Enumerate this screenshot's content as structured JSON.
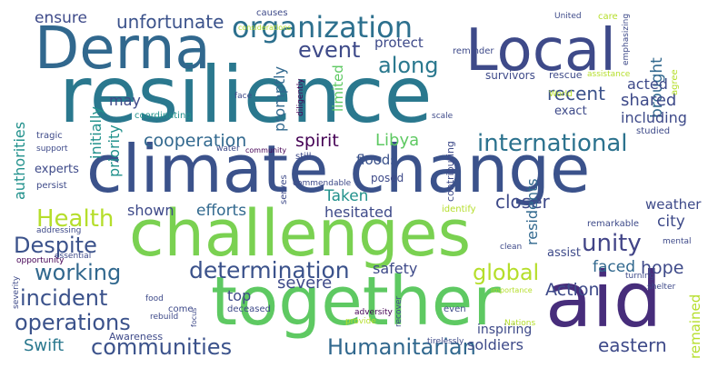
{
  "palette": {
    "dark_purple": "#440154",
    "indigo": "#3b528b",
    "slate_blue": "#31688e",
    "teal": "#21918c",
    "sea_green": "#35b779",
    "lime_green": "#7ad151",
    "yellow_green": "#b5de2b",
    "yellow": "#fde725"
  },
  "words": [
    {
      "text": "resilience",
      "color": "#2a788e"
    },
    {
      "text": "climate change",
      "color": "#3b528b"
    },
    {
      "text": "challenges",
      "color": "#7ad151"
    },
    {
      "text": "together",
      "color": "#5ec962"
    },
    {
      "text": "aid",
      "color": "#472d7b"
    },
    {
      "text": "Local",
      "color": "#3e4a89"
    },
    {
      "text": "Derna",
      "color": "#31688e"
    },
    {
      "text": "organization",
      "color": "#2d708e"
    },
    {
      "text": "international",
      "color": "#2c728e"
    },
    {
      "text": "determination",
      "color": "#3b528b"
    },
    {
      "text": "cooperation",
      "color": "#31688e"
    },
    {
      "text": "spirit",
      "color": "#440154"
    },
    {
      "text": "unity",
      "color": "#414487"
    },
    {
      "text": "Humanitarian",
      "color": "#31688e"
    },
    {
      "text": "communities",
      "color": "#3b528b"
    },
    {
      "text": "operations",
      "color": "#3b528b"
    },
    {
      "text": "incident",
      "color": "#3b528b"
    },
    {
      "text": "working",
      "color": "#31688e"
    },
    {
      "text": "Health",
      "color": "#b5de2b"
    },
    {
      "text": "Despite",
      "color": "#3b528b"
    },
    {
      "text": "global",
      "color": "#b5de2b"
    },
    {
      "text": "event",
      "color": "#3e4a89"
    },
    {
      "text": "along",
      "color": "#2a788e"
    },
    {
      "text": "unfortunate",
      "color": "#3b528b"
    },
    {
      "text": "ensure",
      "color": "#3e4a89"
    },
    {
      "text": "authorities",
      "color": "#21918c"
    },
    {
      "text": "recent",
      "color": "#3b528b"
    },
    {
      "text": "brought",
      "color": "#31688e"
    },
    {
      "text": "acted",
      "color": "#3e4a89"
    },
    {
      "text": "shared",
      "color": "#3e4a89"
    },
    {
      "text": "including",
      "color": "#3e4a89"
    },
    {
      "text": "protect",
      "color": "#3e4a89"
    },
    {
      "text": "Libya",
      "color": "#5ec962"
    },
    {
      "text": "floods",
      "color": "#3b528b"
    },
    {
      "text": "Taken",
      "color": "#21918c"
    },
    {
      "text": "closer",
      "color": "#3e4a89"
    },
    {
      "text": "hesitated",
      "color": "#3e4a89"
    },
    {
      "text": "efforts",
      "color": "#31688e"
    },
    {
      "text": "shown",
      "color": "#3e4a89"
    },
    {
      "text": "safety",
      "color": "#3e4a89"
    },
    {
      "text": "severe",
      "color": "#3e4a89"
    },
    {
      "text": "Action",
      "color": "#3e4a89"
    },
    {
      "text": "faced",
      "color": "#31688e"
    },
    {
      "text": "hope",
      "color": "#3e4a89"
    },
    {
      "text": "city",
      "color": "#3e4a89"
    },
    {
      "text": "weather",
      "color": "#3e4a89"
    },
    {
      "text": "eastern",
      "color": "#3e4a89"
    },
    {
      "text": "soldiers",
      "color": "#3e4a89"
    },
    {
      "text": "Swift",
      "color": "#2a788e"
    },
    {
      "text": "top",
      "color": "#3e4a89"
    },
    {
      "text": "remained",
      "color": "#b5de2b"
    },
    {
      "text": "residents",
      "color": "#31688e"
    },
    {
      "text": "inspiring",
      "color": "#3e4a89"
    },
    {
      "text": "may",
      "color": "#3e4a89"
    },
    {
      "text": "limited",
      "color": "#5ec962"
    },
    {
      "text": "priority",
      "color": "#21918c"
    },
    {
      "text": "promptly",
      "color": "#31688e"
    },
    {
      "text": "initially",
      "color": "#21918c"
    },
    {
      "text": "experts",
      "color": "#3e4a89"
    },
    {
      "text": "exact",
      "color": "#3e4a89"
    },
    {
      "text": "survivors",
      "color": "#3e4a89"
    },
    {
      "text": "rescue",
      "color": "#3e4a89"
    },
    {
      "text": "assistance",
      "color": "#b5de2b"
    },
    {
      "text": "causes",
      "color": "#3e4a89"
    },
    {
      "text": "United",
      "color": "#3e4a89"
    },
    {
      "text": "care",
      "color": "#b5de2b"
    },
    {
      "text": "emphasizing",
      "color": "#3e4a89"
    },
    {
      "text": "agree",
      "color": "#b5de2b"
    },
    {
      "text": "reminder",
      "color": "#3e4a89"
    },
    {
      "text": "considerations",
      "color": "#b5de2b"
    },
    {
      "text": "diligently",
      "color": "#440154"
    },
    {
      "text": "face",
      "color": "#3e4a89"
    },
    {
      "text": "World",
      "color": "#b5de2b"
    },
    {
      "text": "tragic",
      "color": "#3e4a89"
    },
    {
      "text": "support",
      "color": "#3e4a89"
    },
    {
      "text": "persist",
      "color": "#3e4a89"
    },
    {
      "text": "water",
      "color": "#3e4a89"
    },
    {
      "text": "community",
      "color": "#440154"
    },
    {
      "text": "coordinating",
      "color": "#21918c"
    },
    {
      "text": "scale",
      "color": "#3e4a89"
    },
    {
      "text": "studied",
      "color": "#3e4a89"
    },
    {
      "text": "still",
      "color": "#3e4a89"
    },
    {
      "text": "serves",
      "color": "#3e4a89"
    },
    {
      "text": "commendable",
      "color": "#3e4a89"
    },
    {
      "text": "posed",
      "color": "#3e4a89"
    },
    {
      "text": "contributing",
      "color": "#3e4a89"
    },
    {
      "text": "identify",
      "color": "#b5de2b"
    },
    {
      "text": "remarkable",
      "color": "#3e4a89"
    },
    {
      "text": "mental",
      "color": "#3e4a89"
    },
    {
      "text": "clean",
      "color": "#3e4a89"
    },
    {
      "text": "assist",
      "color": "#3e4a89"
    },
    {
      "text": "addressing",
      "color": "#3e4a89"
    },
    {
      "text": "essential",
      "color": "#3e4a89"
    },
    {
      "text": "opportunity",
      "color": "#440154"
    },
    {
      "text": "severity",
      "color": "#3e4a89"
    },
    {
      "text": "food",
      "color": "#3e4a89"
    },
    {
      "text": "come",
      "color": "#3e4a89"
    },
    {
      "text": "deceased",
      "color": "#3e4a89"
    },
    {
      "text": "rebuild",
      "color": "#3e4a89"
    },
    {
      "text": "focus",
      "color": "#3e4a89"
    },
    {
      "text": "Awareness",
      "color": "#3e4a89"
    },
    {
      "text": "even",
      "color": "#3e4a89"
    },
    {
      "text": "adversity",
      "color": "#440154"
    },
    {
      "text": "recover",
      "color": "#3e4a89"
    },
    {
      "text": "provide",
      "color": "#b5de2b"
    },
    {
      "text": "importance",
      "color": "#b5de2b"
    },
    {
      "text": "turning",
      "color": "#3e4a89"
    },
    {
      "text": "shelter",
      "color": "#3e4a89"
    },
    {
      "text": "Nations",
      "color": "#b5de2b"
    },
    {
      "text": "tirelessly",
      "color": "#3e4a89"
    }
  ]
}
